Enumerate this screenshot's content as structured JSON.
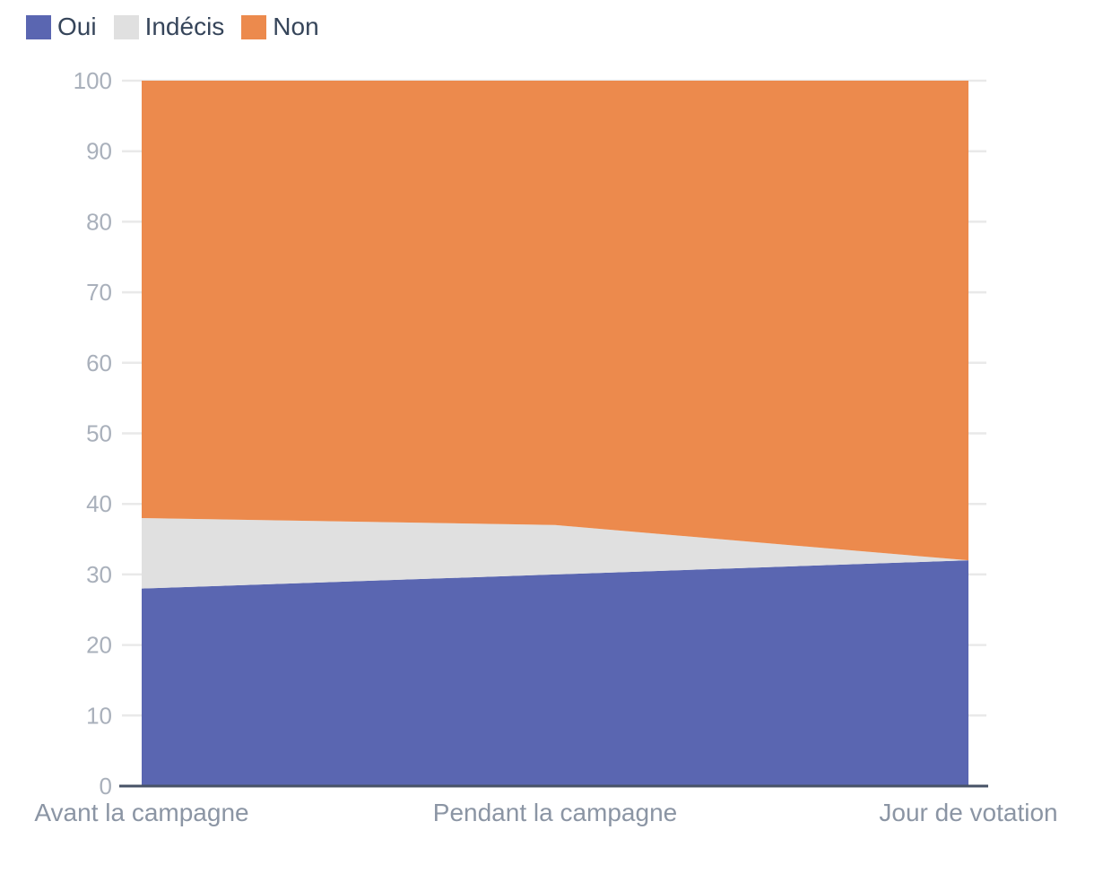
{
  "chart_data": {
    "type": "area",
    "stacked": true,
    "x_categories": [
      "Avant la campagne",
      "Pendant la campagne",
      "Jour de votation"
    ],
    "series": [
      {
        "name": "Oui",
        "color": "#5a66b1",
        "values": [
          28,
          30,
          32
        ]
      },
      {
        "name": "Indécis",
        "color": "#e0e0e0",
        "values": [
          10,
          7,
          0
        ]
      },
      {
        "name": "Non",
        "color": "#ec8a4d",
        "values": [
          62,
          63,
          68
        ]
      }
    ],
    "ylim": [
      0,
      100
    ],
    "y_ticks": [
      0,
      10,
      20,
      30,
      40,
      50,
      60,
      70,
      80,
      90,
      100
    ],
    "grid": true,
    "legend_position": "top-left",
    "style_colors": {
      "background": "#ffffff",
      "legend_text": "#36455a",
      "tick_label": "#a9b0bb",
      "category_label": "#8b95a4",
      "axis_line": "#475266",
      "gridline": "#e9e9e9"
    }
  }
}
